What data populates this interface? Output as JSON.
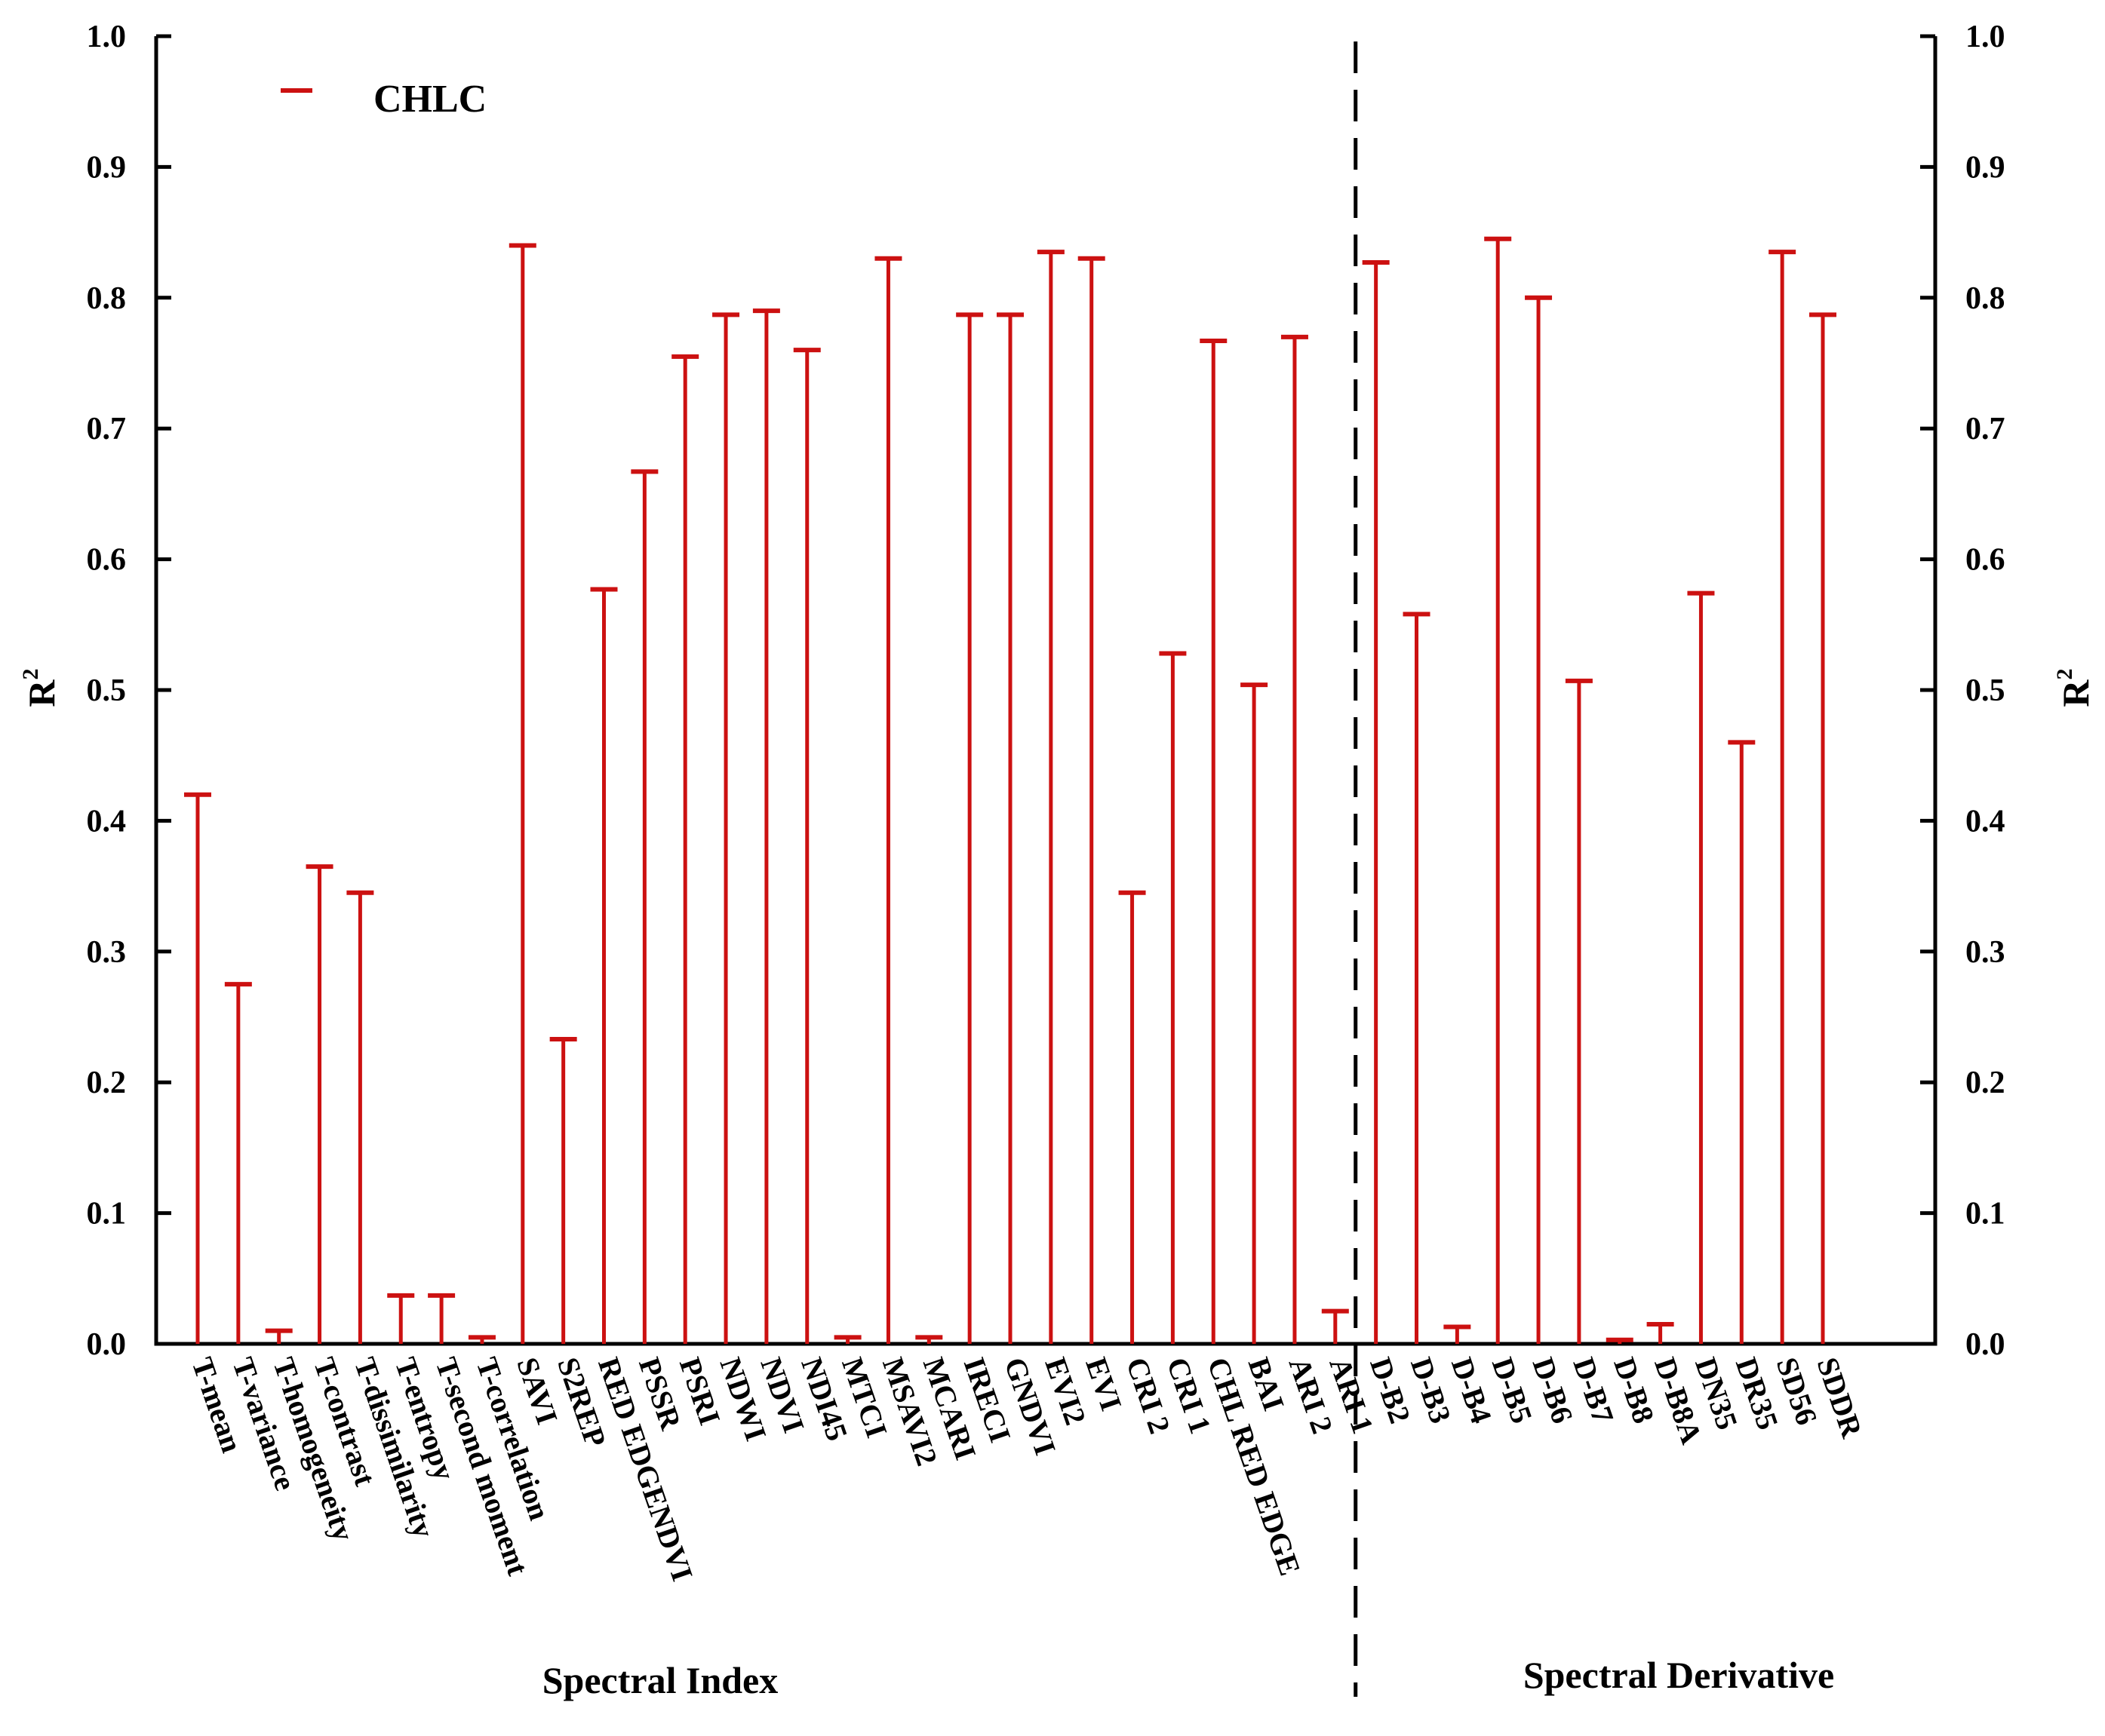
{
  "chart_data": {
    "type": "bar",
    "style": "stem with end cap (drop line)",
    "ylabel": "R",
    "ylabel_superscript": "2",
    "ylim": [
      0.0,
      1.0
    ],
    "yticks": [
      "0.0",
      "0.1",
      "0.2",
      "0.3",
      "0.4",
      "0.5",
      "0.6",
      "0.7",
      "0.8",
      "0.9",
      "1.0"
    ],
    "dual_y_axis": true,
    "grid": false,
    "legend": {
      "position": "top-left",
      "entries": [
        "CHLC"
      ]
    },
    "series": [
      {
        "name": "CHLC",
        "color": "#cc1111",
        "values": [
          0.42,
          0.275,
          0.01,
          0.365,
          0.345,
          0.037,
          0.037,
          0.005,
          0.84,
          0.233,
          0.577,
          0.667,
          0.755,
          0.787,
          0.79,
          0.76,
          0.005,
          0.83,
          0.005,
          0.787,
          0.787,
          0.835,
          0.83,
          0.345,
          0.528,
          0.767,
          0.504,
          0.77,
          0.025,
          0.827,
          0.558,
          0.013,
          0.845,
          0.8,
          0.507,
          0.003,
          0.015,
          0.574,
          0.46,
          0.835,
          0.787
        ]
      }
    ],
    "categories": [
      "T-mean",
      "T-variance",
      "T-homogeneity",
      "T-contrast",
      "T-dissimilarity",
      "T-entropy",
      "T-second moment",
      "T-correlation",
      "SAVI",
      "S2REP",
      "RED EDGENDVI",
      "PSSR",
      "PSRI",
      "NDWI",
      "NDVI",
      "NDI45",
      "MTCI",
      "MSAVI2",
      "MCARI",
      "IRECI",
      "GNDVI",
      "EVI2",
      "EVI",
      "CRI 2",
      "CRI 1",
      "CHL RED EDGE",
      "BAI",
      "ARI 2",
      "ARI 1",
      "D-B2",
      "D-B3",
      "D-B4",
      "D-B5",
      "D-B6",
      "D-B7",
      "D-B8",
      "D-B8A",
      "DN35",
      "DR35",
      "SD56",
      "SDDR"
    ],
    "groups": [
      {
        "label": "Spectral Index",
        "count": 29
      },
      {
        "label": "Spectral Derivative",
        "count": 12
      }
    ]
  }
}
